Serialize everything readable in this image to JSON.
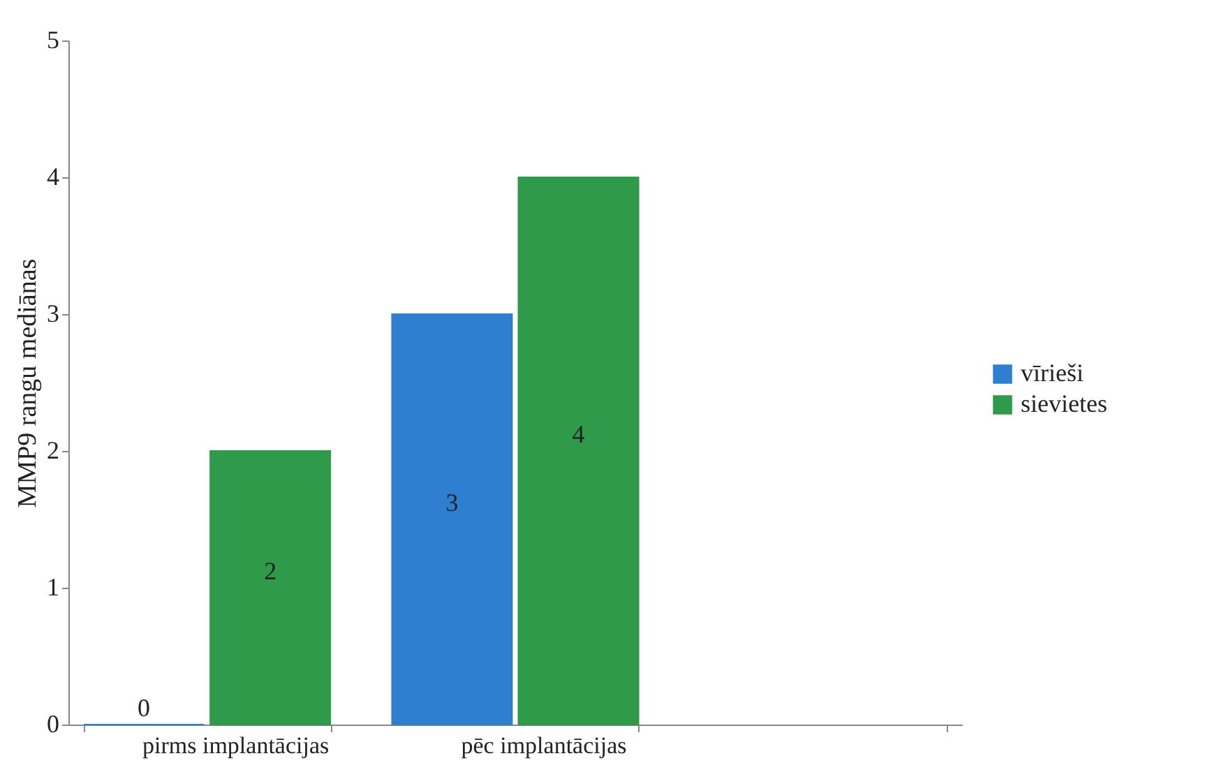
{
  "chart_data": {
    "type": "bar",
    "ylabel": "MMP9 rangu mediānas",
    "categories": [
      "pirms implantācijas",
      "pēc implantācijas",
      null
    ],
    "series": [
      {
        "name": "vīrieši",
        "color": "#2f7fd0",
        "values": [
          0,
          3,
          null
        ]
      },
      {
        "name": "sievietes",
        "color": "#2e9a4a",
        "values": [
          2,
          4,
          null
        ]
      }
    ],
    "ylim": [
      0,
      5
    ],
    "yticks": [
      0,
      1,
      2,
      3,
      4,
      5
    ],
    "grid": false,
    "legend": "right",
    "data_labels": true
  }
}
